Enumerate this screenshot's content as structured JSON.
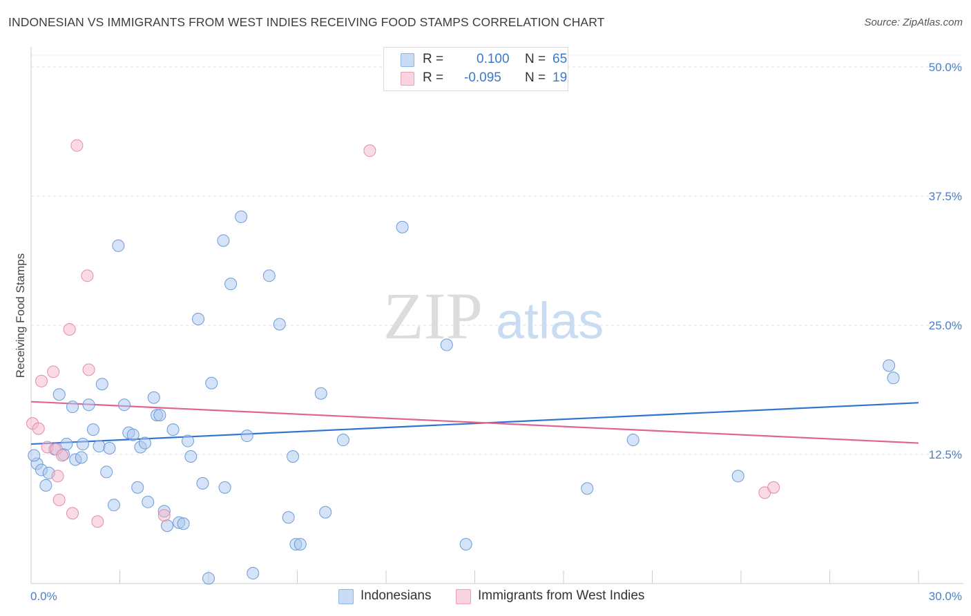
{
  "title": "INDONESIAN VS IMMIGRANTS FROM WEST INDIES RECEIVING FOOD STAMPS CORRELATION CHART",
  "source": "Source: ZipAtlas.com",
  "watermark": {
    "zip": "ZIP",
    "atlas": "atlas"
  },
  "legend_top": {
    "rows": [
      {
        "r_label": "R =",
        "r_value": "0.100",
        "n_label": "N =",
        "n_value": "65",
        "color": "#a9c8f0"
      },
      {
        "r_label": "R =",
        "r_value": "-0.095",
        "n_label": "N =",
        "n_value": "19",
        "color": "#f5b8cc"
      }
    ]
  },
  "legend_bottom": {
    "items": [
      {
        "label": "Indonesians",
        "color": "#a9c8f0"
      },
      {
        "label": "Immigrants from West Indies",
        "color": "#f5b8cc"
      }
    ]
  },
  "chart_data": {
    "type": "scatter",
    "xlabel": "",
    "ylabel": "Receiving Food Stamps",
    "xlim": [
      0,
      30
    ],
    "ylim": [
      0,
      50
    ],
    "x_tick_labels": [
      "0.0%",
      "30.0%"
    ],
    "y_ticks": [
      12.5,
      25.0,
      37.5,
      50.0
    ],
    "y_tick_labels": [
      "12.5%",
      "25.0%",
      "37.5%",
      "50.0%"
    ],
    "grid": true,
    "series": [
      {
        "name": "Indonesians",
        "color": "#a9c8f0",
        "stroke": "#6c9bd6",
        "trend_color": "#2f74d0",
        "trend": {
          "x": [
            0,
            30
          ],
          "y": [
            13.5,
            17.5
          ]
        },
        "points": [
          [
            0.2,
            11.6
          ],
          [
            0.35,
            11.0
          ],
          [
            0.5,
            9.5
          ],
          [
            0.6,
            10.7
          ],
          [
            0.8,
            13.0
          ],
          [
            0.95,
            18.3
          ],
          [
            1.1,
            12.5
          ],
          [
            1.2,
            13.5
          ],
          [
            1.4,
            17.1
          ],
          [
            1.5,
            12.0
          ],
          [
            1.7,
            12.2
          ],
          [
            1.75,
            13.5
          ],
          [
            1.95,
            17.3
          ],
          [
            2.1,
            14.9
          ],
          [
            2.3,
            13.3
          ],
          [
            2.4,
            19.3
          ],
          [
            2.55,
            10.8
          ],
          [
            2.65,
            13.1
          ],
          [
            2.8,
            7.6
          ],
          [
            2.95,
            32.7
          ],
          [
            3.15,
            17.3
          ],
          [
            3.3,
            14.6
          ],
          [
            3.45,
            14.4
          ],
          [
            3.6,
            9.3
          ],
          [
            3.7,
            13.2
          ],
          [
            3.85,
            13.6
          ],
          [
            3.95,
            7.9
          ],
          [
            4.15,
            18.0
          ],
          [
            4.25,
            16.3
          ],
          [
            4.35,
            16.3
          ],
          [
            4.5,
            7.0
          ],
          [
            4.6,
            5.6
          ],
          [
            4.8,
            14.9
          ],
          [
            5.0,
            5.9
          ],
          [
            5.15,
            5.8
          ],
          [
            5.3,
            13.8
          ],
          [
            5.4,
            12.3
          ],
          [
            5.65,
            25.6
          ],
          [
            5.8,
            9.7
          ],
          [
            6.0,
            0.5
          ],
          [
            6.1,
            19.4
          ],
          [
            6.5,
            33.2
          ],
          [
            6.55,
            9.3
          ],
          [
            6.75,
            29.0
          ],
          [
            7.1,
            35.5
          ],
          [
            7.3,
            14.3
          ],
          [
            7.5,
            1.0
          ],
          [
            8.05,
            29.8
          ],
          [
            8.4,
            25.1
          ],
          [
            8.7,
            6.4
          ],
          [
            8.85,
            12.3
          ],
          [
            8.95,
            3.8
          ],
          [
            9.1,
            3.8
          ],
          [
            9.8,
            18.4
          ],
          [
            9.95,
            6.9
          ],
          [
            10.55,
            13.9
          ],
          [
            12.55,
            34.5
          ],
          [
            14.05,
            23.1
          ],
          [
            14.7,
            3.8
          ],
          [
            18.8,
            9.2
          ],
          [
            20.35,
            13.9
          ],
          [
            23.9,
            10.4
          ],
          [
            29.0,
            21.1
          ],
          [
            29.15,
            19.9
          ],
          [
            0.1,
            12.4
          ]
        ]
      },
      {
        "name": "Immigrants from West Indies",
        "color": "#f5b8cc",
        "stroke": "#e58aa8",
        "trend_color": "#e0648f",
        "trend": {
          "x": [
            0,
            30
          ],
          "y": [
            17.6,
            13.6
          ]
        },
        "points": [
          [
            0.05,
            15.5
          ],
          [
            0.25,
            15.0
          ],
          [
            0.35,
            19.6
          ],
          [
            0.55,
            13.2
          ],
          [
            0.75,
            20.5
          ],
          [
            0.85,
            13.0
          ],
          [
            0.9,
            10.4
          ],
          [
            0.95,
            8.1
          ],
          [
            1.05,
            12.4
          ],
          [
            1.3,
            24.6
          ],
          [
            1.4,
            6.8
          ],
          [
            1.55,
            42.4
          ],
          [
            1.9,
            29.8
          ],
          [
            1.95,
            20.7
          ],
          [
            2.25,
            6.0
          ],
          [
            4.5,
            6.6
          ],
          [
            11.45,
            41.9
          ],
          [
            24.8,
            8.8
          ],
          [
            25.1,
            9.3
          ]
        ]
      }
    ]
  }
}
